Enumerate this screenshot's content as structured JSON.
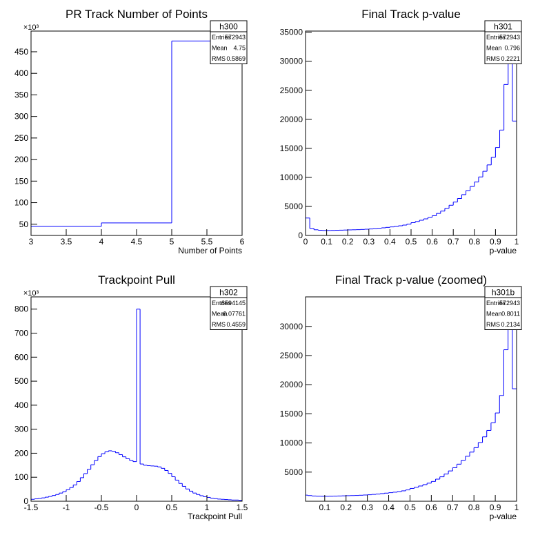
{
  "chart_data": [
    {
      "type": "histogram",
      "title": "PR Track Number of Points",
      "x_label": "Number of Points",
      "y_multiplier": "×10³",
      "bins": [
        3,
        4,
        5,
        6
      ],
      "values": [
        45,
        53,
        475
      ],
      "color": "#0000ff",
      "xlim": [
        3,
        6
      ],
      "ylim": [
        24,
        498
      ],
      "xticks": [
        3,
        3.5,
        4,
        4.5,
        5,
        5.5,
        6
      ],
      "yticks": [
        50,
        100,
        150,
        200,
        250,
        300,
        350,
        400,
        450
      ],
      "stats": {
        "name": "h300",
        "labels": [
          "Entries",
          "Mean",
          "RMS"
        ],
        "values": [
          572943,
          4.75,
          0.5869
        ]
      }
    },
    {
      "type": "histogram",
      "title": "Final Track p-value",
      "x_label": "p-value",
      "bins": [
        0,
        0.02,
        0.04,
        0.06,
        0.08,
        0.1,
        0.12,
        0.14,
        0.16,
        0.18,
        0.2,
        0.22,
        0.24,
        0.26,
        0.28,
        0.3,
        0.32,
        0.34,
        0.36,
        0.38,
        0.4,
        0.42,
        0.44,
        0.46,
        0.48,
        0.5,
        0.52,
        0.54,
        0.56,
        0.58,
        0.6,
        0.62,
        0.64,
        0.66,
        0.68,
        0.7,
        0.72,
        0.74,
        0.76,
        0.78,
        0.8,
        0.82,
        0.84,
        0.86,
        0.88,
        0.9,
        0.92,
        0.94,
        0.96,
        0.98,
        1
      ],
      "values": [
        3000,
        1200,
        975,
        890,
        855,
        850,
        865,
        885,
        905,
        928,
        955,
        975,
        995,
        1030,
        1070,
        1115,
        1175,
        1235,
        1310,
        1390,
        1470,
        1555,
        1660,
        1785,
        1945,
        2200,
        2400,
        2615,
        2850,
        3105,
        3395,
        3790,
        4195,
        4670,
        5200,
        5750,
        6360,
        7025,
        7720,
        8435,
        9200,
        10075,
        11050,
        12150,
        13450,
        15150,
        18150,
        26000,
        36000,
        19700
      ],
      "color": "#0000ff",
      "xlim": [
        0,
        1
      ],
      "ylim": [
        0,
        35200
      ],
      "xticks": [
        0,
        0.1,
        0.2,
        0.3,
        0.4,
        0.5,
        0.6,
        0.7,
        0.8,
        0.9,
        1
      ],
      "yticks": [
        0,
        5000,
        10000,
        15000,
        20000,
        25000,
        30000,
        35000
      ],
      "stats": {
        "name": "h301",
        "labels": [
          "Entries",
          "Mean",
          "RMS"
        ],
        "values": [
          572943,
          0.796,
          0.2221
        ]
      }
    },
    {
      "type": "histogram",
      "title": "Trackpoint Pull",
      "x_label": "Trackpoint Pull",
      "y_multiplier": "×10³",
      "bins": [
        -1.5,
        -1.45,
        -1.4,
        -1.35,
        -1.3,
        -1.25,
        -1.2,
        -1.15,
        -1.1,
        -1.05,
        -1,
        -0.95,
        -0.9,
        -0.85,
        -0.8,
        -0.75,
        -0.7,
        -0.65,
        -0.6,
        -0.55,
        -0.5,
        -0.45,
        -0.4,
        -0.35,
        -0.3,
        -0.25,
        -0.2,
        -0.15,
        -0.1,
        -0.05,
        0,
        0.05,
        0.1,
        0.15,
        0.2,
        0.25,
        0.3,
        0.35,
        0.4,
        0.45,
        0.5,
        0.55,
        0.6,
        0.65,
        0.7,
        0.75,
        0.8,
        0.85,
        0.9,
        0.95,
        1,
        1.05,
        1.1,
        1.15,
        1.2,
        1.25,
        1.3,
        1.35,
        1.4,
        1.45,
        1.5
      ],
      "values": [
        8,
        10,
        12,
        14,
        17,
        20,
        24,
        28,
        34,
        40,
        48,
        57,
        68,
        82,
        98,
        115,
        133,
        152,
        170,
        186,
        198,
        206,
        210,
        208,
        202,
        194,
        185,
        177,
        170,
        165,
        800,
        155,
        150,
        148,
        147,
        146,
        143,
        137,
        128,
        116,
        102,
        88,
        74,
        62,
        51,
        42,
        34,
        28,
        23,
        19,
        16,
        13,
        11,
        9,
        8,
        7,
        6,
        5,
        5,
        4
      ],
      "color": "#0000ff",
      "xlim": [
        -1.5,
        1.5
      ],
      "ylim": [
        0,
        851
      ],
      "xticks": [
        -1.5,
        -1,
        -0.5,
        0,
        0.5,
        1,
        1.5
      ],
      "yticks": [
        0,
        100,
        200,
        300,
        400,
        500,
        600,
        700,
        800
      ],
      "stats": {
        "name": "h302",
        "labels": [
          "Entries",
          "Mean",
          "RMS"
        ],
        "values": [
          8594145,
          -0.07761,
          0.4559
        ]
      }
    },
    {
      "type": "histogram",
      "title": "Final Track p-value (zoomed)",
      "x_label": "p-value",
      "bins": [
        0.01,
        0.02,
        0.04,
        0.06,
        0.08,
        0.1,
        0.12,
        0.14,
        0.16,
        0.18,
        0.2,
        0.22,
        0.24,
        0.26,
        0.28,
        0.3,
        0.32,
        0.34,
        0.36,
        0.38,
        0.4,
        0.42,
        0.44,
        0.46,
        0.48,
        0.5,
        0.52,
        0.54,
        0.56,
        0.58,
        0.6,
        0.62,
        0.64,
        0.66,
        0.68,
        0.7,
        0.72,
        0.74,
        0.76,
        0.78,
        0.8,
        0.82,
        0.84,
        0.86,
        0.88,
        0.9,
        0.92,
        0.94,
        0.96,
        0.98,
        1
      ],
      "values": [
        1050,
        975,
        900,
        870,
        855,
        850,
        865,
        885,
        905,
        928,
        955,
        975,
        995,
        1030,
        1070,
        1115,
        1175,
        1235,
        1310,
        1390,
        1470,
        1555,
        1660,
        1785,
        1945,
        2200,
        2400,
        2615,
        2850,
        3105,
        3395,
        3790,
        4195,
        4670,
        5200,
        5750,
        6360,
        7025,
        7720,
        8435,
        9200,
        10075,
        11050,
        12150,
        13450,
        15150,
        18150,
        26000,
        36000,
        19300
      ],
      "color": "#0000ff",
      "xlim": [
        0.01,
        1
      ],
      "ylim": [
        0,
        35070
      ],
      "xticks": [
        0.1,
        0.2,
        0.3,
        0.4,
        0.5,
        0.6,
        0.7,
        0.8,
        0.9,
        1
      ],
      "yticks": [
        5000,
        10000,
        15000,
        20000,
        25000,
        30000
      ],
      "stats": {
        "name": "h301b",
        "labels": [
          "Entries",
          "Mean",
          "RMS"
        ],
        "values": [
          572943,
          0.8011,
          0.2134
        ]
      }
    }
  ]
}
